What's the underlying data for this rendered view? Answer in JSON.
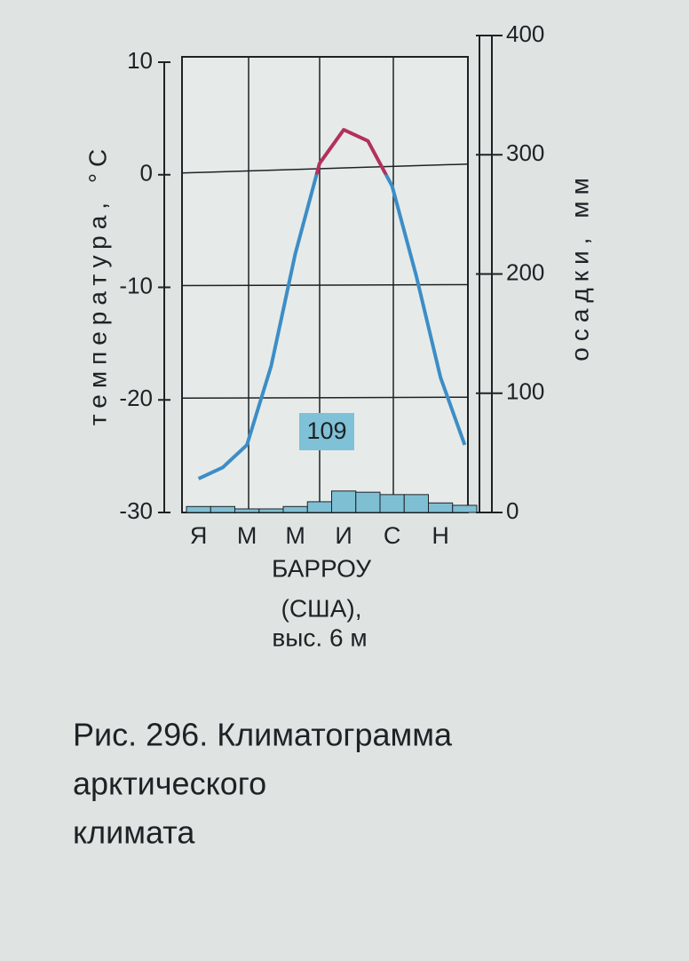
{
  "chart_data": {
    "type": "climatogram",
    "y_label": "температура, °С",
    "y2_label": "осадки, мм",
    "station": "БАРРОУ",
    "country": "(США),",
    "altitude": "выс. 6 м",
    "annotation": "109",
    "caption": [
      "Рис. 296. Климатограмма",
      "арктического",
      "климата"
    ],
    "categories": [
      "Я",
      null,
      "М",
      null,
      "М",
      null,
      "И",
      null,
      "С",
      null,
      "Н",
      null
    ],
    "series": [
      {
        "name": "температура",
        "color": "#3d8dc6",
        "above_zero_color": "#b3305e",
        "values": [
          -27,
          -26,
          -24,
          -17,
          -7,
          1,
          4,
          3,
          -1,
          -9,
          -18,
          -24
        ]
      },
      {
        "name": "осадки",
        "color": "#7fbfd4",
        "axis": "y2",
        "values": [
          5,
          5,
          3,
          3,
          5,
          9,
          18,
          17,
          15,
          15,
          8,
          6
        ]
      }
    ],
    "ylim": [
      -30,
      10
    ],
    "yticks": [
      10,
      0,
      -10,
      -20,
      -30
    ],
    "y2lim": [
      0,
      400
    ],
    "y2ticks": [
      0,
      100,
      200,
      300,
      400
    ],
    "grid": true
  }
}
